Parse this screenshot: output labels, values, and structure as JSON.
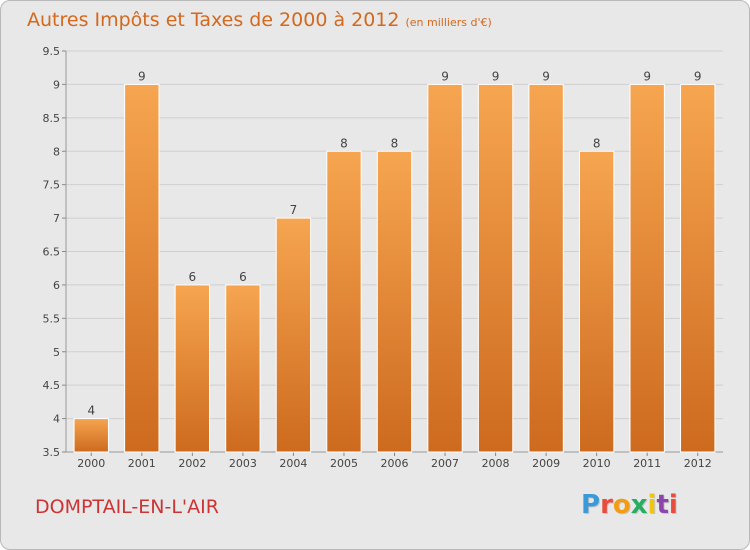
{
  "title": "Autres Impôts et Taxes de 2000 à 2012",
  "subtitle": "(en milliers d'€)",
  "place": "DOMPTAIL-EN-L'AIR",
  "logo": {
    "letters": [
      "P",
      "r",
      "o",
      "x",
      "i",
      "t",
      "i"
    ],
    "colors": [
      "#3a9ad9",
      "#e74c3c",
      "#f39c12",
      "#27ae60",
      "#f1c40f",
      "#8e44ad",
      "#e74c3c"
    ]
  },
  "colors": {
    "bar_light": "#f6a550",
    "bar_dark": "#cd6a1e",
    "title": "#d2691e",
    "grid": "#cfcfcf"
  },
  "chart_data": {
    "type": "bar",
    "categories": [
      "2000",
      "2001",
      "2002",
      "2003",
      "2004",
      "2005",
      "2006",
      "2007",
      "2008",
      "2009",
      "2010",
      "2011",
      "2012"
    ],
    "values": [
      4,
      9,
      6,
      6,
      7,
      8,
      8,
      9,
      9,
      9,
      8,
      9,
      9
    ],
    "data_labels": [
      "4",
      "9",
      "6",
      "6",
      "7",
      "8",
      "8",
      "9",
      "9",
      "9",
      "8",
      "9",
      "9"
    ],
    "yticks": [
      "3.5",
      "4",
      "4.5",
      "5",
      "5.5",
      "6",
      "6.5",
      "7",
      "7.5",
      "8",
      "8.5",
      "9",
      "9.5"
    ],
    "ylim": [
      3.5,
      9.5
    ],
    "grid": true
  }
}
